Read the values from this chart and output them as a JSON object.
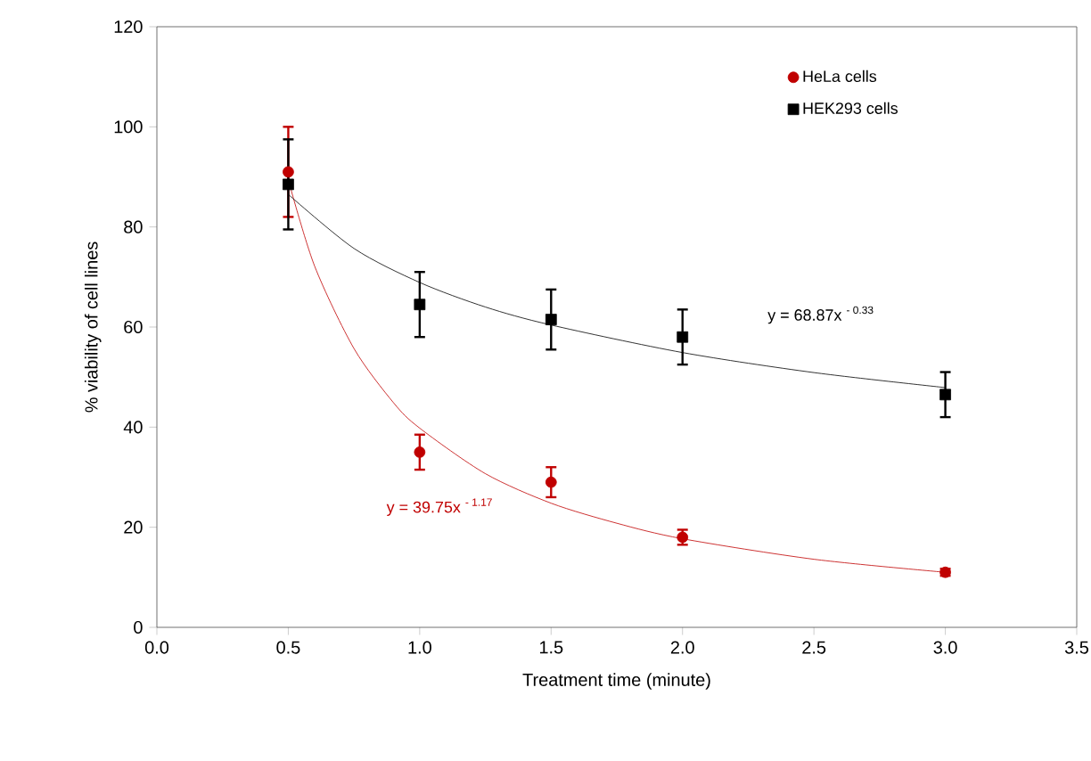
{
  "chart_data": {
    "type": "scatter",
    "xlabel": "Treatment time (minute)",
    "ylabel": "% viability of cell lines",
    "xlim": [
      0,
      3.5
    ],
    "ylim": [
      0,
      120
    ],
    "xticks": [
      {
        "value": 0,
        "label": "0.0"
      },
      {
        "value": 0.5,
        "label": "0.5"
      },
      {
        "value": 1,
        "label": "1.0"
      },
      {
        "value": 1.5,
        "label": "1.5"
      },
      {
        "value": 2,
        "label": "2.0"
      },
      {
        "value": 2.5,
        "label": "2.5"
      },
      {
        "value": 3,
        "label": "3.0"
      },
      {
        "value": 3.5,
        "label": "3.5"
      }
    ],
    "yticks": [
      0,
      20,
      40,
      60,
      80,
      100,
      120
    ],
    "grid": false,
    "legend": "top right",
    "series": [
      {
        "name": "HeLa cells",
        "marker": "circle",
        "color": "#c00000",
        "x": [
          0.5,
          1.0,
          1.5,
          2.0,
          3.0
        ],
        "values": [
          91,
          35,
          29,
          18,
          11
        ],
        "errors": [
          9,
          3.5,
          3,
          1.5,
          0.7
        ]
      },
      {
        "name": "HEK293 cells",
        "marker": "square",
        "color": "#000000",
        "x": [
          0.5,
          1.0,
          1.5,
          2.0,
          3.0
        ],
        "values": [
          88.5,
          64.5,
          61.5,
          58,
          46.5
        ],
        "errors": [
          9,
          6.5,
          6,
          5.5,
          4.5
        ]
      },
      {
        "type": "line",
        "marker": "none",
        "color": "#c00000",
        "x": [
          0.5,
          0.6,
          0.75,
          0.9,
          1.0,
          1.25,
          1.5,
          1.75,
          2.0,
          2.5,
          3.0
        ],
        "values": [
          89.4,
          72.2,
          55.7,
          44.9,
          39.8,
          30.7,
          24.8,
          20.8,
          17.7,
          13.6,
          11.0
        ]
      },
      {
        "type": "line",
        "marker": "none",
        "color": "#000000",
        "x": [
          0.5,
          0.75,
          1.0,
          1.25,
          1.5,
          2.0,
          2.5,
          3.0
        ],
        "values": [
          86.5,
          75.7,
          68.9,
          64.0,
          60.4,
          54.9,
          50.9,
          47.9
        ]
      }
    ],
    "annotations": [
      "y = 39.75x $^{- 1.17}$",
      "y = 68.87x $^{- 0.33}$"
    ]
  }
}
